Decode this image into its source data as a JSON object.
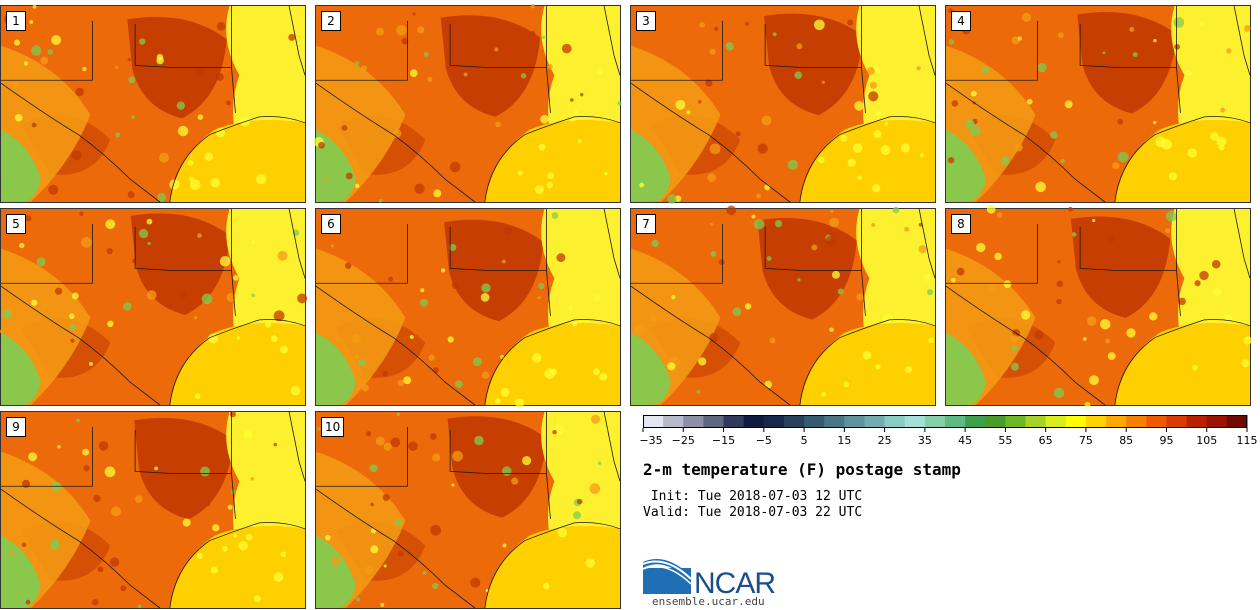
{
  "figure": {
    "title": "2-m temperature (F) postage stamp",
    "init_line": " Init: Tue 2018-07-03 12 UTC",
    "valid_line": "Valid: Tue 2018-07-03 22 UTC",
    "website": "ensemble.ucar.edu",
    "logo_text": "NCAR"
  },
  "panels": [
    {
      "label": "1"
    },
    {
      "label": "2"
    },
    {
      "label": "3"
    },
    {
      "label": "4"
    },
    {
      "label": "5"
    },
    {
      "label": "6"
    },
    {
      "label": "7"
    },
    {
      "label": "8"
    },
    {
      "label": "9"
    },
    {
      "label": "10"
    }
  ],
  "colorbar": {
    "tick_labels": [
      "−35",
      "−25",
      "−15",
      "−5",
      "5",
      "15",
      "25",
      "35",
      "45",
      "55",
      "65",
      "75",
      "85",
      "95",
      "105",
      "115"
    ],
    "colors": [
      "#e6e6f0",
      "#b9b9cc",
      "#8d8fa6",
      "#5f6680",
      "#2f3a5c",
      "#0e1a40",
      "#17284a",
      "#26405e",
      "#365a72",
      "#4a7688",
      "#5e929c",
      "#73acb0",
      "#8ccac4",
      "#a4e0d4",
      "#86cfa6",
      "#5fb982",
      "#3f9e4c",
      "#4a9a2e",
      "#6db626",
      "#a8d22a",
      "#d8ec1e",
      "#ffff00",
      "#ffd200",
      "#ffa800",
      "#f57f00",
      "#ec5a00",
      "#d83a00",
      "#b82000",
      "#961400",
      "#6e0a00"
    ]
  },
  "colors": {
    "hot": "#c23a00",
    "warm": "#ec6a0a",
    "mild": "#f59c14",
    "gulf": "#fed000",
    "yellow": "#ffff33",
    "green": "#7fcc52"
  }
}
